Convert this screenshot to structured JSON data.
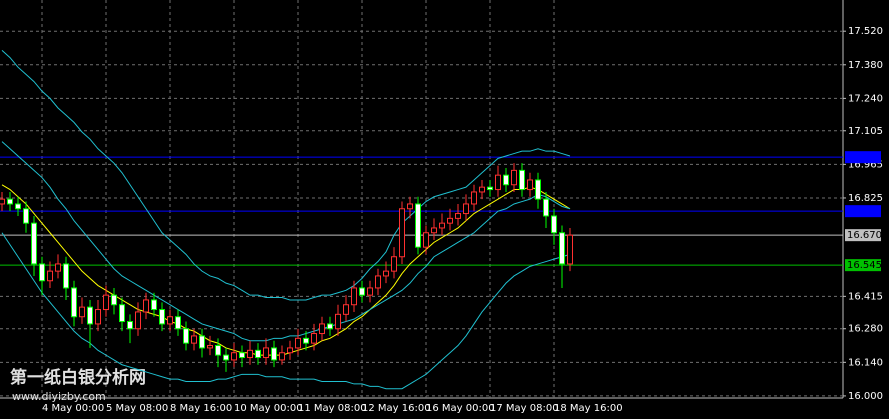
{
  "chart_data": {
    "type": "candlestick",
    "categories": [
      null,
      null,
      null,
      null,
      null,
      "4 May 00:00",
      null,
      null,
      null,
      null,
      null,
      null,
      null,
      "5 May 08:00",
      null,
      null,
      null,
      null,
      null,
      null,
      null,
      "8 May 16:00",
      null,
      null,
      null,
      null,
      null,
      null,
      null,
      "10 May 00:00",
      null,
      null,
      null,
      null,
      null,
      null,
      null,
      "11 May 08:00",
      null,
      null,
      null,
      null,
      null,
      null,
      null,
      "12 May 16:00",
      null,
      null,
      null,
      null,
      null,
      null,
      null,
      "16 May 00:00",
      null,
      null,
      null,
      null,
      null,
      null,
      null,
      "17 May 08:00",
      null,
      null,
      null,
      null,
      null,
      null,
      null,
      "18 May 16:00",
      null,
      null
    ],
    "open": [
      16.8,
      16.82,
      16.8,
      16.78,
      16.72,
      16.55,
      16.48,
      16.52,
      16.55,
      16.45,
      16.33,
      16.37,
      16.3,
      16.36,
      16.42,
      16.38,
      16.31,
      16.28,
      16.35,
      16.4,
      16.36,
      16.3,
      16.33,
      16.28,
      16.22,
      16.25,
      16.2,
      16.21,
      16.17,
      16.15,
      16.18,
      16.16,
      16.19,
      16.16,
      16.2,
      16.15,
      16.18,
      16.2,
      16.24,
      16.22,
      16.26,
      16.3,
      16.28,
      16.34,
      16.38,
      16.45,
      16.42,
      16.45,
      16.5,
      16.52,
      16.58,
      16.78,
      16.8,
      16.62,
      16.68,
      16.7,
      16.72,
      16.74,
      16.76,
      16.8,
      16.85,
      16.87,
      16.86,
      16.92,
      16.88,
      16.94,
      16.86,
      16.9,
      16.82,
      16.75,
      16.68,
      16.55
    ],
    "high": [
      16.85,
      16.85,
      16.83,
      16.81,
      16.75,
      16.58,
      16.56,
      16.59,
      16.58,
      16.48,
      16.41,
      16.4,
      16.4,
      16.46,
      16.45,
      16.41,
      16.34,
      16.39,
      16.43,
      16.43,
      16.39,
      16.36,
      16.36,
      16.31,
      16.28,
      16.28,
      16.25,
      16.24,
      16.2,
      16.22,
      16.21,
      16.23,
      16.22,
      16.24,
      16.23,
      16.21,
      16.23,
      16.28,
      16.27,
      16.3,
      16.33,
      16.33,
      16.38,
      16.42,
      16.48,
      16.48,
      16.48,
      16.53,
      16.56,
      16.62,
      16.81,
      16.83,
      16.83,
      16.71,
      16.74,
      16.76,
      16.78,
      16.8,
      16.84,
      16.88,
      16.9,
      16.9,
      16.96,
      16.95,
      16.97,
      16.97,
      16.93,
      16.93,
      16.85,
      16.78,
      16.71,
      16.7
    ],
    "low": [
      16.77,
      16.77,
      16.75,
      16.68,
      16.5,
      16.42,
      16.45,
      16.49,
      16.4,
      16.29,
      16.3,
      16.2,
      16.27,
      16.33,
      16.34,
      16.27,
      16.22,
      16.25,
      16.32,
      16.33,
      16.27,
      16.27,
      16.25,
      16.19,
      16.19,
      16.16,
      16.17,
      16.12,
      16.1,
      16.12,
      16.12,
      16.13,
      16.13,
      16.13,
      16.12,
      16.13,
      16.15,
      16.17,
      16.19,
      16.19,
      16.23,
      16.25,
      16.25,
      16.31,
      16.35,
      16.39,
      16.39,
      16.42,
      16.47,
      16.49,
      16.55,
      16.74,
      16.59,
      16.59,
      16.65,
      16.67,
      16.69,
      16.71,
      16.73,
      16.77,
      16.82,
      16.83,
      16.83,
      16.85,
      16.85,
      16.83,
      16.83,
      16.78,
      16.7,
      16.63,
      16.45,
      16.52
    ],
    "close": [
      16.82,
      16.8,
      16.78,
      16.72,
      16.55,
      16.48,
      16.52,
      16.55,
      16.45,
      16.33,
      16.37,
      16.3,
      16.36,
      16.42,
      16.38,
      16.31,
      16.28,
      16.35,
      16.4,
      16.36,
      16.3,
      16.33,
      16.28,
      16.22,
      16.25,
      16.2,
      16.21,
      16.17,
      16.15,
      16.18,
      16.16,
      16.19,
      16.16,
      16.2,
      16.15,
      16.18,
      16.2,
      16.24,
      16.22,
      16.26,
      16.3,
      16.28,
      16.34,
      16.38,
      16.45,
      16.42,
      16.45,
      16.5,
      16.52,
      16.58,
      16.78,
      16.8,
      16.62,
      16.68,
      16.7,
      16.72,
      16.74,
      16.76,
      16.8,
      16.85,
      16.87,
      16.86,
      16.92,
      16.88,
      16.94,
      16.86,
      16.9,
      16.82,
      16.75,
      16.68,
      16.55,
      16.67
    ],
    "up_color": "#ff3030",
    "down_color": "#00ff00",
    "overlays": [
      {
        "color": "#ffff00",
        "values": [
          16.88,
          16.86,
          16.83,
          16.8,
          16.76,
          16.72,
          16.68,
          16.64,
          16.6,
          16.56,
          16.52,
          16.49,
          16.46,
          16.44,
          16.42,
          16.4,
          16.38,
          16.36,
          16.35,
          16.34,
          16.33,
          16.31,
          16.3,
          16.28,
          16.27,
          16.25,
          16.23,
          16.22,
          16.2,
          16.19,
          16.18,
          16.18,
          16.17,
          16.17,
          16.17,
          16.17,
          16.18,
          16.19,
          16.2,
          16.21,
          16.23,
          16.24,
          16.26,
          16.28,
          16.31,
          16.33,
          16.36,
          16.39,
          16.42,
          16.46,
          16.51,
          16.55,
          16.58,
          16.61,
          16.64,
          16.66,
          16.68,
          16.7,
          16.73,
          16.76,
          16.78,
          16.8,
          16.82,
          16.84,
          16.86,
          16.86,
          16.87,
          16.86,
          16.84,
          16.82,
          16.8,
          16.78
        ]
      },
      {
        "color": "#20c0d0",
        "values": [
          17.44,
          17.41,
          17.37,
          17.34,
          17.31,
          17.27,
          17.24,
          17.2,
          17.17,
          17.14,
          17.1,
          17.07,
          17.03,
          17.0,
          16.97,
          16.93,
          16.88,
          16.83,
          16.78,
          16.73,
          16.68,
          16.65,
          16.62,
          16.59,
          16.55,
          16.52,
          16.5,
          16.49,
          16.47,
          16.46,
          16.44,
          16.42,
          16.42,
          16.41,
          16.41,
          16.41,
          16.4,
          16.4,
          16.4,
          16.41,
          16.42,
          16.42,
          16.43,
          16.44,
          16.46,
          16.49,
          16.53,
          16.56,
          16.6,
          16.67,
          16.72,
          16.75,
          16.78,
          16.81,
          16.83,
          16.84,
          16.85,
          16.86,
          16.87,
          16.9,
          16.93,
          16.96,
          16.99,
          17.0,
          17.01,
          17.02,
          17.02,
          17.03,
          17.02,
          17.02,
          17.01,
          17.0
        ]
      },
      {
        "color": "#20c0d0",
        "values": [
          17.06,
          17.03,
          17.0,
          16.97,
          16.94,
          16.91,
          16.87,
          16.82,
          16.78,
          16.73,
          16.69,
          16.65,
          16.61,
          16.57,
          16.53,
          16.5,
          16.48,
          16.46,
          16.44,
          16.42,
          16.4,
          16.38,
          16.36,
          16.34,
          16.32,
          16.3,
          16.29,
          16.28,
          16.27,
          16.26,
          16.24,
          16.23,
          16.23,
          16.23,
          16.24,
          16.24,
          16.25,
          16.25,
          16.26,
          16.27,
          16.28,
          16.29,
          16.3,
          16.31,
          16.32,
          16.34,
          16.36,
          16.38,
          16.4,
          16.42,
          16.44,
          16.47,
          16.51,
          16.54,
          16.58,
          16.6,
          16.62,
          16.64,
          16.66,
          16.68,
          16.71,
          16.74,
          16.77,
          16.78,
          16.8,
          16.81,
          16.82,
          16.84,
          16.83,
          16.81,
          16.79,
          16.78
        ]
      },
      {
        "color": "#20c0d0",
        "values": [
          16.68,
          16.63,
          16.58,
          16.53,
          16.48,
          16.43,
          16.39,
          16.35,
          16.31,
          16.27,
          16.24,
          16.22,
          16.19,
          16.17,
          16.15,
          16.13,
          16.12,
          16.11,
          16.1,
          16.09,
          16.08,
          16.07,
          16.07,
          16.06,
          16.06,
          16.06,
          16.06,
          16.07,
          16.07,
          16.08,
          16.09,
          16.09,
          16.09,
          16.08,
          16.08,
          16.08,
          16.07,
          16.07,
          16.07,
          16.07,
          16.06,
          16.06,
          16.06,
          16.06,
          16.05,
          16.05,
          16.04,
          16.04,
          16.03,
          16.03,
          16.03,
          16.05,
          16.07,
          16.09,
          16.12,
          16.15,
          16.18,
          16.21,
          16.25,
          16.3,
          16.35,
          16.39,
          16.43,
          16.47,
          16.5,
          16.52,
          16.54,
          16.55,
          16.56,
          16.57,
          16.58,
          16.59
        ]
      }
    ],
    "levels": [
      {
        "value": 16.995,
        "color": "#0000ff"
      },
      {
        "value": 16.77,
        "color": "#0000ff"
      },
      {
        "value": 16.67,
        "label": "16.670",
        "color": "#c0c0c0"
      },
      {
        "value": 16.545,
        "label": "16.545",
        "color": "#00c000"
      }
    ],
    "ylim": [
      15.983,
      17.65
    ],
    "yticks": [
      {
        "value": 17.52,
        "label": "17.520"
      },
      {
        "value": 17.38,
        "label": "17.380"
      },
      {
        "value": 17.24,
        "label": "17.240"
      },
      {
        "value": 17.105,
        "label": "17.105"
      },
      {
        "value": 16.965,
        "label": "16.965"
      },
      {
        "value": 16.825,
        "label": "16.825"
      },
      {
        "value": 16.415,
        "label": "16.415"
      },
      {
        "value": 16.28,
        "label": "16.280"
      },
      {
        "value": 16.14,
        "label": "16.140"
      },
      {
        "value": 16.0,
        "label": "16.000"
      }
    ],
    "grid": true
  },
  "watermark": {
    "title": "第一纸白银分析网",
    "url": "www.diyizby.com"
  }
}
